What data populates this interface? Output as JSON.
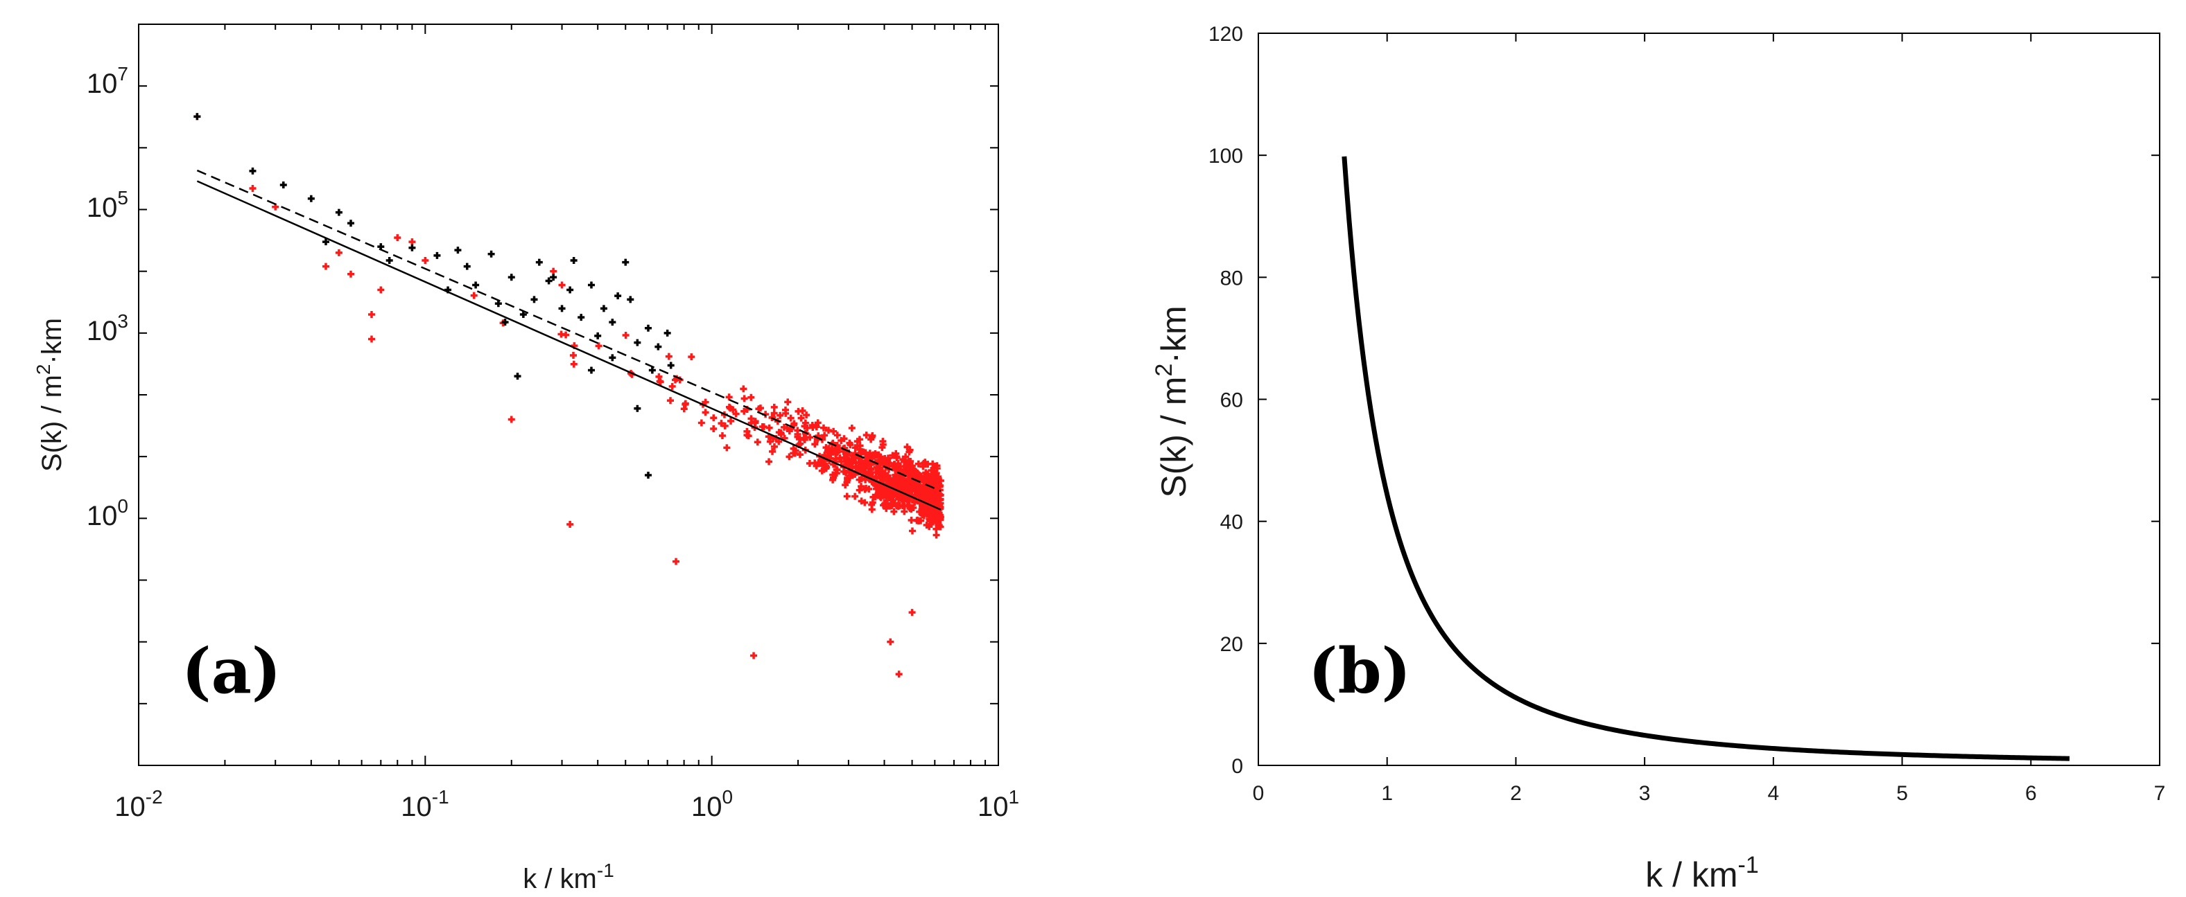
{
  "chart_data": [
    {
      "panel": "(a)",
      "type": "scatter",
      "xscale": "log",
      "yscale": "log",
      "xlim": [
        0.01,
        10
      ],
      "ylim_log10": [
        -4,
        8
      ],
      "xticks": [
        {
          "base": "10",
          "exp": "-2",
          "value": 0.01
        },
        {
          "base": "10",
          "exp": "-1",
          "value": 0.1
        },
        {
          "base": "10",
          "exp": "0",
          "value": 1
        },
        {
          "base": "10",
          "exp": "1",
          "value": 10
        }
      ],
      "yticks": [
        {
          "base": "10",
          "exp": "0",
          "value": 1
        },
        {
          "base": "10",
          "exp": "3",
          "value": 1000
        },
        {
          "base": "10",
          "exp": "5",
          "value": 100000
        },
        {
          "base": "10",
          "exp": "7",
          "value": 10000000
        }
      ],
      "xlabel": {
        "main": "k / km",
        "sup": "-1"
      },
      "ylabel": {
        "pre": "S(k) / m",
        "sup": "2",
        "post": "·km"
      },
      "series": [
        {
          "name": "black points",
          "color": "#000000",
          "points": [
            [
              0.016,
              3200000.0
            ],
            [
              0.025,
              420000.0
            ],
            [
              0.032,
              250000.0
            ],
            [
              0.04,
              150000.0
            ],
            [
              0.045,
              30000.0
            ],
            [
              0.05,
              90000.0
            ],
            [
              0.055,
              60000.0
            ],
            [
              0.07,
              25000.0
            ],
            [
              0.075,
              15000.0
            ],
            [
              0.09,
              24000.0
            ],
            [
              0.11,
              18000.0
            ],
            [
              0.12,
              5000.0
            ],
            [
              0.13,
              22000.0
            ],
            [
              0.14,
              12000.0
            ],
            [
              0.15,
              6000.0
            ],
            [
              0.17,
              19000.0
            ],
            [
              0.18,
              3000.0
            ],
            [
              0.2,
              8000.0
            ],
            [
              0.22,
              2000.0
            ],
            [
              0.24,
              3500.0
            ],
            [
              0.25,
              14000.0
            ],
            [
              0.27,
              7000.0
            ],
            [
              0.3,
              2500.0
            ],
            [
              0.32,
              5000.0
            ],
            [
              0.35,
              1800.0
            ],
            [
              0.38,
              6000.0
            ],
            [
              0.4,
              900.0
            ],
            [
              0.42,
              2500.0
            ],
            [
              0.45,
              1500.0
            ],
            [
              0.47,
              4000.0
            ],
            [
              0.5,
              14000.0
            ],
            [
              0.52,
              3500.0
            ],
            [
              0.55,
              700.0
            ],
            [
              0.6,
              1200.0
            ],
            [
              0.62,
              250.0
            ],
            [
              0.65,
              600.0
            ],
            [
              0.7,
              1000.0
            ],
            [
              0.72,
              300.0
            ],
            [
              0.6,
              5
            ],
            [
              0.55,
              60
            ],
            [
              0.45,
              400
            ],
            [
              0.38,
              250
            ],
            [
              0.33,
              15000.0
            ],
            [
              0.28,
              8000.0
            ],
            [
              0.21,
              200.0
            ],
            [
              0.19,
              1500.0
            ]
          ]
        },
        {
          "name": "red points",
          "color": "#ff1a1a",
          "anchor_points": [
            [
              0.016,
              3200000.0
            ],
            [
              0.025,
              220000.0
            ],
            [
              0.03,
              110000.0
            ],
            [
              0.045,
              12000.0
            ],
            [
              0.05,
              20000.0
            ],
            [
              0.055,
              9000.0
            ],
            [
              0.065,
              800.0
            ],
            [
              0.065,
              2000.0
            ],
            [
              0.07,
              5000.0
            ],
            [
              0.08,
              35000.0
            ],
            [
              0.09,
              30000.0
            ],
            [
              0.1,
              15000.0
            ],
            [
              0.2,
              40
            ],
            [
              0.28,
              10000.0
            ],
            [
              0.3,
              6000.0
            ],
            [
              0.32,
              0.8
            ],
            [
              0.75,
              0.2
            ],
            [
              1.4,
              0.006
            ],
            [
              4.5,
              0.003
            ],
            [
              5,
              0.03
            ],
            [
              4.2,
              0.01
            ]
          ],
          "cloud": {
            "k_min": 0.12,
            "k_max": 6.3,
            "count": 900,
            "trend_a": 80,
            "trend_b": -2.05,
            "scatter_sigma_log10": 0.55,
            "seed": 7
          }
        }
      ],
      "fit_lines": [
        {
          "name": "solid fit",
          "style": "solid",
          "a": 60,
          "b": -2.05,
          "k_range": [
            0.016,
            6.3
          ]
        },
        {
          "name": "dashed fit",
          "style": "dashed",
          "a": 110,
          "b": -2.0,
          "k_range": [
            0.016,
            6.3
          ]
        }
      ]
    },
    {
      "panel": "(b)",
      "type": "line",
      "xscale": "linear",
      "yscale": "linear",
      "xlim": [
        0,
        7
      ],
      "ylim": [
        0,
        120
      ],
      "xticks": [
        0,
        1,
        2,
        3,
        4,
        5,
        6,
        7
      ],
      "yticks": [
        0,
        20,
        40,
        60,
        80,
        100,
        120
      ],
      "xlabel": {
        "main": "k / km",
        "sup": "-1"
      },
      "ylabel": {
        "pre": "S(k) / m",
        "sup": "2",
        "post": "·km"
      },
      "series": [
        {
          "name": "S(k) model",
          "color": "#000000",
          "formula": "S(k) = 44.4 * k^-2",
          "x_range": [
            0.667,
            6.3
          ],
          "samples": 300
        }
      ]
    }
  ]
}
